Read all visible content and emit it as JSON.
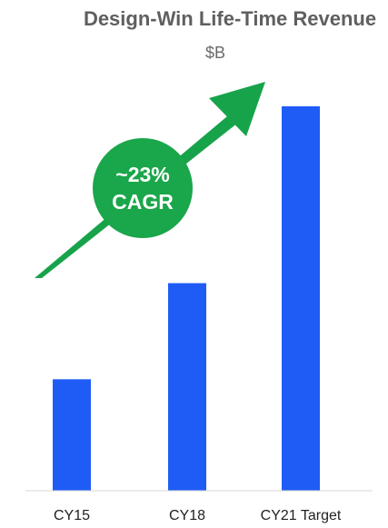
{
  "chart_data": {
    "type": "bar",
    "title": "Design-Win Life-Time Revenue",
    "subtitle": "$B",
    "categories": [
      "CY15",
      "CY18",
      "CY21 Target"
    ],
    "values": [
      29,
      54,
      100
    ],
    "ylim": [
      0,
      100
    ],
    "grid": false,
    "legend": "none",
    "bar_color": "#1f5cf6",
    "annotation": {
      "lines": [
        "~23%",
        "CAGR"
      ],
      "badge_color": "#1aa64a",
      "arrow_color": "#17a34a"
    }
  }
}
